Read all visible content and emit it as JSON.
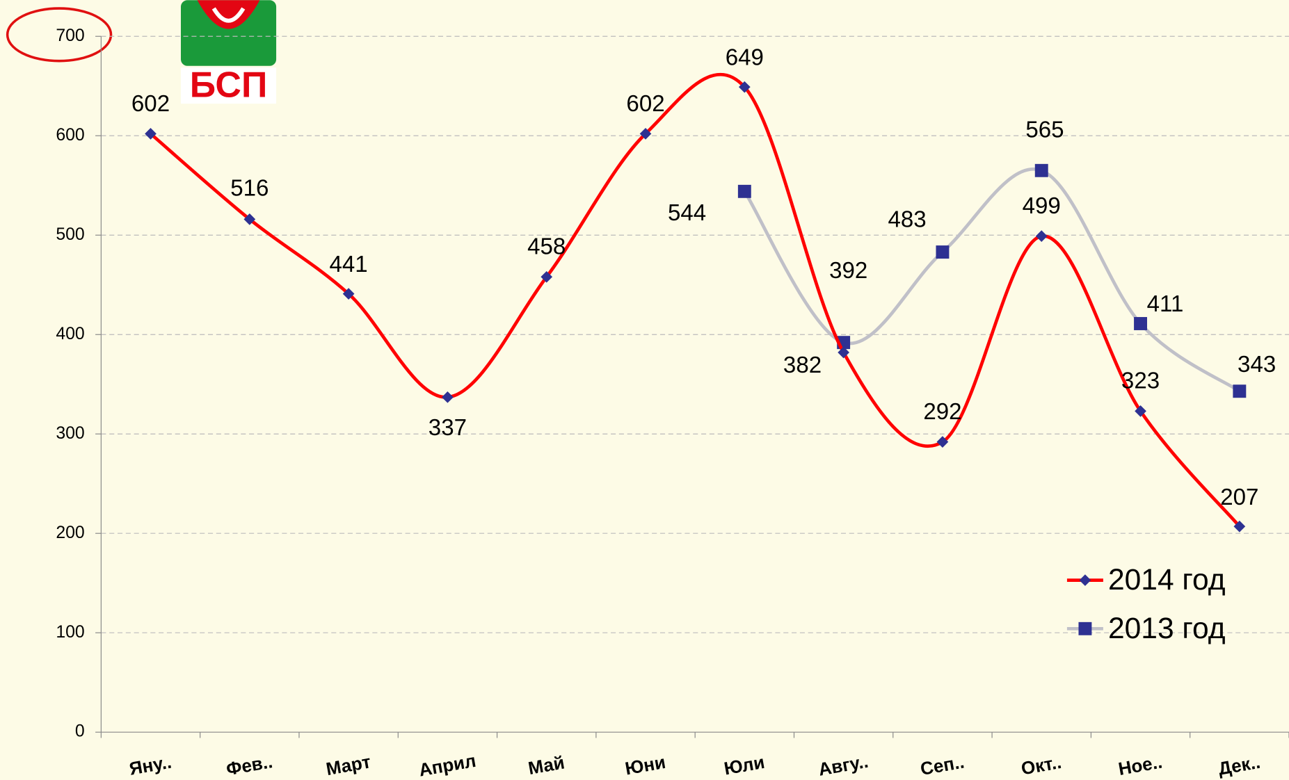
{
  "logo_text": "БСП",
  "chart_data": {
    "type": "line",
    "categories": [
      "Яну..",
      "Фев..",
      "Март",
      "Април",
      "Май",
      "Юни",
      "Юли",
      "Авгу..",
      "Сеп..",
      "Окт..",
      "Ное..",
      "Дек.."
    ],
    "series": [
      {
        "name": "2014 год",
        "color": "#ff0000",
        "marker_color": "#2e3192",
        "values": [
          602,
          516,
          441,
          337,
          458,
          602,
          649,
          382,
          292,
          499,
          323,
          207
        ]
      },
      {
        "name": "2013 год",
        "color": "#c0c0c8",
        "marker_color": "#2e3192",
        "values": [
          null,
          null,
          null,
          null,
          null,
          null,
          544,
          392,
          483,
          565,
          411,
          343
        ]
      }
    ],
    "ylim": [
      0,
      700
    ],
    "yticks": [
      0,
      100,
      200,
      300,
      400,
      500,
      600,
      700
    ],
    "grid": true,
    "legend": "lower right",
    "smooth": true
  }
}
